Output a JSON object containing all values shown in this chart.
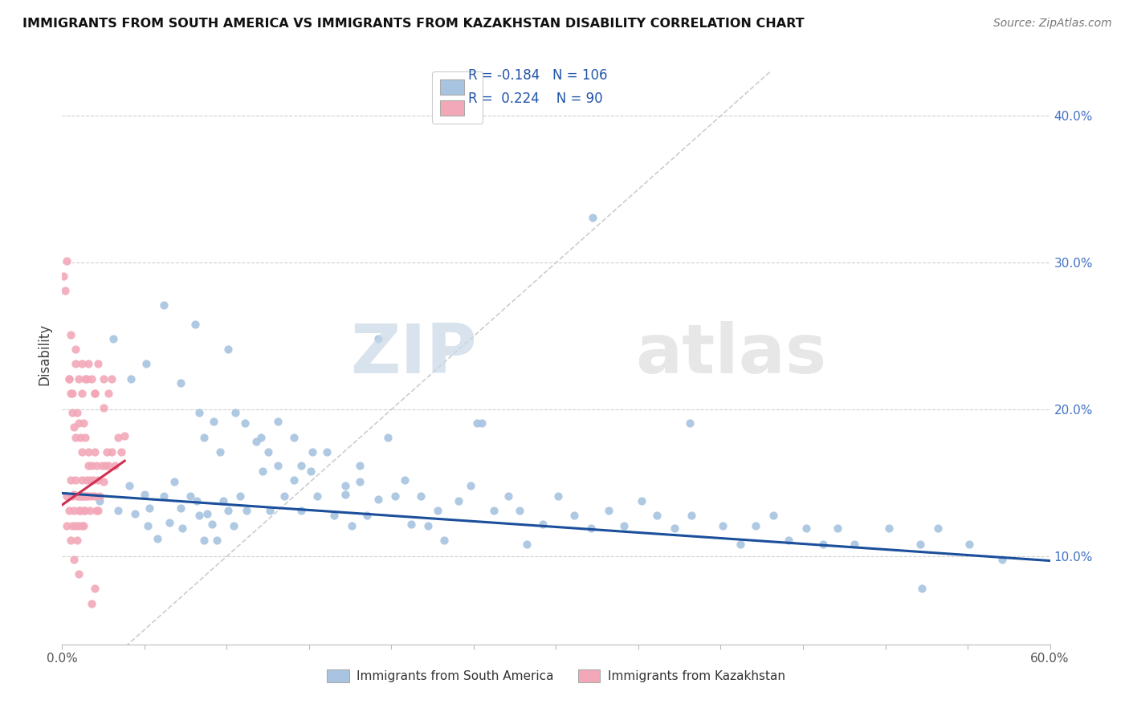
{
  "title": "IMMIGRANTS FROM SOUTH AMERICA VS IMMIGRANTS FROM KAZAKHSTAN DISABILITY CORRELATION CHART",
  "source": "Source: ZipAtlas.com",
  "ylabel": "Disability",
  "y_ticks": [
    0.1,
    0.2,
    0.3,
    0.4
  ],
  "y_tick_labels": [
    "10.0%",
    "20.0%",
    "30.0%",
    "40.0%"
  ],
  "x_lim": [
    0.0,
    0.6
  ],
  "y_lim": [
    0.04,
    0.435
  ],
  "r_blue": -0.184,
  "n_blue": 106,
  "r_pink": 0.224,
  "n_pink": 90,
  "blue_color": "#A8C4E0",
  "pink_color": "#F2A8B8",
  "blue_line_color": "#1B4F9B",
  "pink_line_color": "#D03050",
  "diagonal_color": "#C8C8C8",
  "legend_label_blue": "Immigrants from South America",
  "legend_label_pink": "Immigrants from Kazakhstan",
  "watermark_zip": "ZIP",
  "watermark_atlas": "atlas",
  "blue_trend_start_x": 0.0,
  "blue_trend_start_y": 0.143,
  "blue_trend_end_x": 0.6,
  "blue_trend_end_y": 0.097,
  "pink_trend_start_x": 0.0,
  "pink_trend_start_y": 0.135,
  "pink_trend_end_x": 0.038,
  "pink_trend_end_y": 0.165,
  "blue_scatter_x": [
    0.023,
    0.034,
    0.041,
    0.044,
    0.05,
    0.052,
    0.053,
    0.058,
    0.062,
    0.065,
    0.068,
    0.072,
    0.073,
    0.078,
    0.082,
    0.083,
    0.086,
    0.088,
    0.091,
    0.094,
    0.098,
    0.101,
    0.104,
    0.108,
    0.112,
    0.118,
    0.122,
    0.126,
    0.131,
    0.135,
    0.141,
    0.145,
    0.151,
    0.155,
    0.161,
    0.165,
    0.172,
    0.176,
    0.181,
    0.185,
    0.192,
    0.198,
    0.202,
    0.208,
    0.212,
    0.218,
    0.222,
    0.228,
    0.232,
    0.241,
    0.248,
    0.255,
    0.262,
    0.271,
    0.278,
    0.282,
    0.292,
    0.301,
    0.311,
    0.321,
    0.332,
    0.341,
    0.352,
    0.361,
    0.372,
    0.382,
    0.401,
    0.412,
    0.421,
    0.432,
    0.441,
    0.452,
    0.462,
    0.471,
    0.481,
    0.502,
    0.521,
    0.532,
    0.551,
    0.571,
    0.031,
    0.042,
    0.051,
    0.062,
    0.072,
    0.081,
    0.083,
    0.086,
    0.092,
    0.096,
    0.101,
    0.105,
    0.111,
    0.121,
    0.125,
    0.131,
    0.141,
    0.145,
    0.152,
    0.172,
    0.181,
    0.192,
    0.252,
    0.322,
    0.381,
    0.522
  ],
  "blue_scatter_y": [
    0.138,
    0.131,
    0.148,
    0.129,
    0.142,
    0.121,
    0.133,
    0.112,
    0.141,
    0.123,
    0.151,
    0.133,
    0.119,
    0.141,
    0.138,
    0.128,
    0.111,
    0.129,
    0.122,
    0.111,
    0.138,
    0.131,
    0.121,
    0.141,
    0.131,
    0.178,
    0.158,
    0.131,
    0.162,
    0.141,
    0.152,
    0.131,
    0.158,
    0.141,
    0.171,
    0.128,
    0.142,
    0.121,
    0.151,
    0.128,
    0.139,
    0.181,
    0.141,
    0.152,
    0.122,
    0.141,
    0.121,
    0.131,
    0.111,
    0.138,
    0.148,
    0.191,
    0.131,
    0.141,
    0.131,
    0.108,
    0.122,
    0.141,
    0.128,
    0.119,
    0.131,
    0.121,
    0.138,
    0.128,
    0.119,
    0.128,
    0.121,
    0.108,
    0.121,
    0.128,
    0.111,
    0.119,
    0.108,
    0.119,
    0.108,
    0.119,
    0.108,
    0.119,
    0.108,
    0.098,
    0.248,
    0.221,
    0.231,
    0.271,
    0.218,
    0.258,
    0.198,
    0.181,
    0.192,
    0.171,
    0.241,
    0.198,
    0.191,
    0.181,
    0.171,
    0.192,
    0.181,
    0.162,
    0.171,
    0.148,
    0.162,
    0.248,
    0.191,
    0.331,
    0.191,
    0.078
  ],
  "pink_scatter_x": [
    0.003,
    0.004,
    0.005,
    0.006,
    0.006,
    0.007,
    0.007,
    0.008,
    0.008,
    0.009,
    0.009,
    0.01,
    0.01,
    0.01,
    0.011,
    0.011,
    0.012,
    0.012,
    0.012,
    0.013,
    0.013,
    0.013,
    0.014,
    0.014,
    0.015,
    0.015,
    0.016,
    0.016,
    0.017,
    0.017,
    0.018,
    0.018,
    0.019,
    0.02,
    0.02,
    0.021,
    0.021,
    0.022,
    0.022,
    0.023,
    0.024,
    0.025,
    0.026,
    0.027,
    0.028,
    0.03,
    0.032,
    0.034,
    0.036,
    0.038,
    0.004,
    0.006,
    0.008,
    0.01,
    0.012,
    0.014,
    0.016,
    0.018,
    0.02,
    0.022,
    0.025,
    0.028,
    0.03,
    0.001,
    0.002,
    0.003,
    0.004,
    0.005,
    0.006,
    0.007,
    0.008,
    0.009,
    0.01,
    0.011,
    0.012,
    0.013,
    0.014,
    0.016,
    0.018,
    0.02,
    0.005,
    0.008,
    0.012,
    0.015,
    0.02,
    0.025,
    0.003,
    0.005,
    0.007,
    0.01
  ],
  "pink_scatter_y": [
    0.141,
    0.131,
    0.152,
    0.141,
    0.121,
    0.142,
    0.131,
    0.152,
    0.121,
    0.141,
    0.111,
    0.141,
    0.131,
    0.121,
    0.141,
    0.131,
    0.152,
    0.141,
    0.121,
    0.141,
    0.131,
    0.121,
    0.141,
    0.131,
    0.152,
    0.141,
    0.162,
    0.141,
    0.152,
    0.131,
    0.162,
    0.141,
    0.152,
    0.171,
    0.141,
    0.162,
    0.131,
    0.152,
    0.131,
    0.141,
    0.162,
    0.151,
    0.162,
    0.171,
    0.162,
    0.171,
    0.162,
    0.181,
    0.171,
    0.182,
    0.221,
    0.211,
    0.231,
    0.221,
    0.211,
    0.221,
    0.231,
    0.221,
    0.211,
    0.231,
    0.221,
    0.211,
    0.221,
    0.291,
    0.281,
    0.301,
    0.221,
    0.211,
    0.198,
    0.188,
    0.181,
    0.198,
    0.191,
    0.181,
    0.171,
    0.191,
    0.181,
    0.171,
    0.068,
    0.078,
    0.251,
    0.241,
    0.231,
    0.221,
    0.211,
    0.201,
    0.121,
    0.111,
    0.098,
    0.088
  ]
}
